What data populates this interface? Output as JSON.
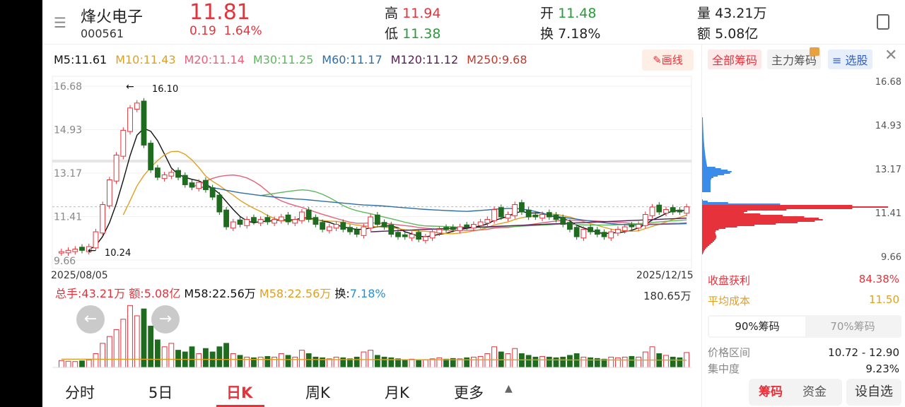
{
  "header": {
    "name": "烽火电子",
    "code": "000561",
    "price": "11.81",
    "change": "0.19",
    "change_pct": "1.64%",
    "high_label": "高",
    "high": "11.94",
    "low_label": "低",
    "low": "11.38",
    "open_label": "开",
    "open": "11.48",
    "turnover_label": "换",
    "turnover": "7.18%",
    "volume_label": "量",
    "volume": "43.21万",
    "amount_label": "额",
    "amount": "5.08亿"
  },
  "ma_legend": [
    {
      "text": "M5:11.61",
      "color": "#111111"
    },
    {
      "text": "M10:11.43",
      "color": "#e0a020"
    },
    {
      "text": "M20:11.14",
      "color": "#e8607a"
    },
    {
      "text": "M30:11.25",
      "color": "#5cb85c"
    },
    {
      "text": "M60:11.17",
      "color": "#2d6ea8"
    },
    {
      "text": "M120:11.12",
      "color": "#5a1a5a"
    },
    {
      "text": "M250:9.68",
      "color": "#c0392b"
    }
  ],
  "draw_button": "画线",
  "chart_data": {
    "type": "candlestick",
    "start_date": "2025/08/05",
    "end_date": "2025/12/15",
    "y_ticks": [
      "16.68",
      "14.93",
      "13.17",
      "11.41",
      "9.66"
    ],
    "ylim": [
      9.66,
      16.68
    ],
    "max_annotation": "16.10",
    "min_annotation": "10.24",
    "closes": [
      10.0,
      10.05,
      10.1,
      10.05,
      10.2,
      10.8,
      11.9,
      12.9,
      13.9,
      14.9,
      15.8,
      16.0,
      14.3,
      13.3,
      13.0,
      13.1,
      13.2,
      13.0,
      12.7,
      12.6,
      12.8,
      12.5,
      12.2,
      11.6,
      11.0,
      11.2,
      11.1,
      11.3,
      11.2,
      11.3,
      11.2,
      11.3,
      11.4,
      11.2,
      11.3,
      11.6,
      11.3,
      11.1,
      10.9,
      11.0,
      11.1,
      10.9,
      10.8,
      10.7,
      11.0,
      11.4,
      11.1,
      11.0,
      10.7,
      10.6,
      10.6,
      10.7,
      10.5,
      10.6,
      10.8,
      10.9,
      10.9,
      10.9,
      11.0,
      11.0,
      11.1,
      11.2,
      11.3,
      11.7,
      11.4,
      11.5,
      11.9,
      11.6,
      11.4,
      11.4,
      11.5,
      11.4,
      11.3,
      11.1,
      10.9,
      10.6,
      10.9,
      10.8,
      10.7,
      10.6,
      10.8,
      10.9,
      11.0,
      11.0,
      11.1,
      11.5,
      11.8,
      11.6,
      11.7,
      11.6,
      11.6,
      11.81
    ],
    "volumes": [
      20,
      18,
      17,
      19,
      22,
      40,
      70,
      90,
      110,
      140,
      180,
      150,
      170,
      120,
      80,
      60,
      70,
      50,
      45,
      60,
      40,
      55,
      45,
      60,
      70,
      40,
      35,
      30,
      28,
      30,
      32,
      30,
      40,
      35,
      30,
      50,
      40,
      30,
      28,
      25,
      30,
      28,
      25,
      30,
      45,
      50,
      35,
      30,
      28,
      25,
      22,
      24,
      20,
      22,
      25,
      28,
      24,
      26,
      25,
      28,
      30,
      32,
      40,
      60,
      45,
      40,
      55,
      40,
      35,
      30,
      32,
      30,
      28,
      30,
      35,
      40,
      30,
      28,
      26,
      24,
      30,
      28,
      30,
      32,
      30,
      45,
      60,
      40,
      35,
      30,
      28,
      43.21
    ],
    "volume_max": "180.65万"
  },
  "volume_legend": {
    "total": "总手:43.21万",
    "amount": "额:5.08亿",
    "m58a": "M58:22.56万",
    "m58b": "M58:22.56万",
    "turn_label": "换:",
    "turn": "7.18%"
  },
  "right_panel": {
    "tabs": [
      "全部筹码",
      "主力筹码",
      "选股"
    ],
    "y_ticks": [
      "16.68",
      "14.93",
      "13.17",
      "11.41",
      "9.66"
    ],
    "profit_label": "收盘获利",
    "profit": "84.38%",
    "avg_label": "平均成本",
    "avg": "11.50",
    "seg": [
      "90%筹码",
      "70%筹码"
    ],
    "range_label": "价格区间",
    "range": "10.72 - 12.90",
    "conc_label": "集中度",
    "conc": "9.23%"
  },
  "bottom_tabs": [
    "分时",
    "5日",
    "日K",
    "周K",
    "月K",
    "更多"
  ],
  "bottom_buttons": {
    "chips": "筹码",
    "funds": "资金",
    "add": "设自选"
  },
  "colors": {
    "up": "#e5323b",
    "down": "#1f6b1f"
  }
}
